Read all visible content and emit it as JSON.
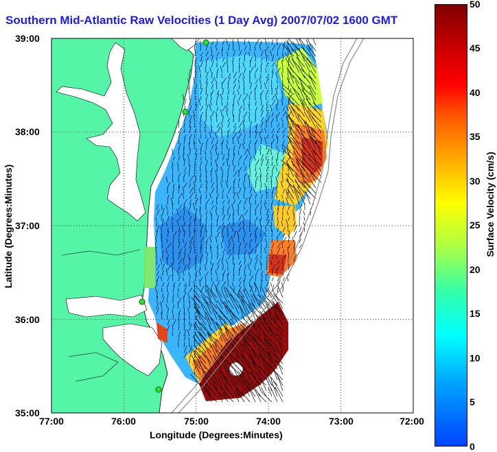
{
  "title": "Southern Mid-Atlantic Raw Velocities (1 Day Avg) 2007/07/02 1600 GMT",
  "axes": {
    "xlabel": "Longitude (Degrees:Minutes)",
    "ylabel": "Latitude (Degrees:Minutes)",
    "x_ticks": [
      "77:00",
      "76:00",
      "75:00",
      "74:00",
      "73:00",
      "72:00"
    ],
    "y_ticks": [
      "39:00",
      "38:00",
      "37:00",
      "36:00",
      "35:00"
    ],
    "lon_range": [
      -77,
      -72
    ],
    "lat_range": [
      35,
      39
    ],
    "grid": "dotted"
  },
  "colorbar": {
    "label": "Surface Velocity (cm/s)",
    "ticks": [
      "50",
      "45",
      "40",
      "35",
      "30",
      "25",
      "20",
      "15",
      "10",
      "5",
      "0"
    ],
    "range": [
      0,
      50
    ]
  },
  "colors": {
    "land": "#55f5a8",
    "ocean_blank": "#ffffff",
    "title": "#1a1af0",
    "station": "#33dd33"
  }
}
